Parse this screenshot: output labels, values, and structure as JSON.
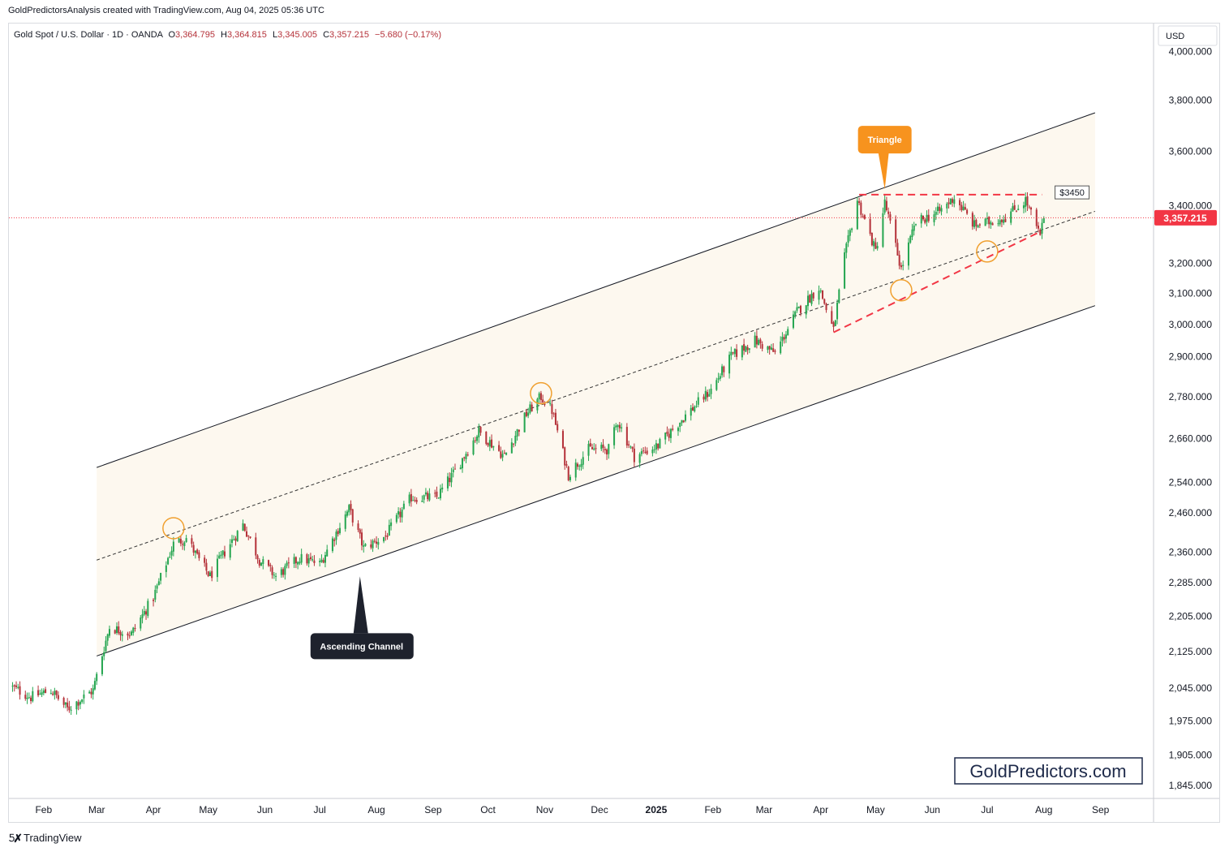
{
  "header": {
    "attribution": "GoldPredictorsAnalysis created with TradingView.com, Aug 04, 2025 05:36 UTC"
  },
  "footer": {
    "brand": "TradingView",
    "logo": "tradingview-logo"
  },
  "watermark": "GoldPredictors.com",
  "colors": {
    "up": "#26a651",
    "down": "#b5323a",
    "channel_fill": "#fdf8ef",
    "triangle_line": "#f23645",
    "price_label": "#f23645",
    "callout_orange": "#f7931e",
    "callout_dark": "#1e222d",
    "circle": "#f0a030"
  },
  "chart_data": {
    "type": "candlestick",
    "symbol": "Gold Spot / U.S. Dollar · 1D · OANDA",
    "ohlc_legend": {
      "o_label": "O",
      "o": "3,364.795",
      "h_label": "H",
      "h": "3,364.815",
      "l_label": "L",
      "l": "3,345.005",
      "c_label": "C",
      "c": "3,357.215",
      "change": "−5.680 (−0.17%)"
    },
    "currency": "USD",
    "y_scale": "log",
    "ylim": [
      1820,
      4120
    ],
    "y_ticks": [
      {
        "v": 4000,
        "label": "4,000.000"
      },
      {
        "v": 3800,
        "label": "3,800.000"
      },
      {
        "v": 3600,
        "label": "3,600.000"
      },
      {
        "v": 3400,
        "label": "3,400.000"
      },
      {
        "v": 3200,
        "label": "3,200.000"
      },
      {
        "v": 3100,
        "label": "3,100.000"
      },
      {
        "v": 3000,
        "label": "3,000.000"
      },
      {
        "v": 2900,
        "label": "2,900.000"
      },
      {
        "v": 2780,
        "label": "2,780.000"
      },
      {
        "v": 2660,
        "label": "2,660.000"
      },
      {
        "v": 2540,
        "label": "2,540.000"
      },
      {
        "v": 2460,
        "label": "2,460.000"
      },
      {
        "v": 2360,
        "label": "2,360.000"
      },
      {
        "v": 2285,
        "label": "2,285.000"
      },
      {
        "v": 2205,
        "label": "2,205.000"
      },
      {
        "v": 2125,
        "label": "2,125.000"
      },
      {
        "v": 2045,
        "label": "2,045.000"
      },
      {
        "v": 1975,
        "label": "1,975.000"
      },
      {
        "v": 1905,
        "label": "1,905.000"
      },
      {
        "v": 1845,
        "label": "1,845.000"
      }
    ],
    "x_ticks": [
      {
        "date": "2024-02-01",
        "label": "Feb"
      },
      {
        "date": "2024-03-01",
        "label": "Mar"
      },
      {
        "date": "2024-04-01",
        "label": "Apr"
      },
      {
        "date": "2024-05-01",
        "label": "May"
      },
      {
        "date": "2024-06-01",
        "label": "Jun"
      },
      {
        "date": "2024-07-01",
        "label": "Jul"
      },
      {
        "date": "2024-08-01",
        "label": "Aug"
      },
      {
        "date": "2024-09-01",
        "label": "Sep"
      },
      {
        "date": "2024-10-01",
        "label": "Oct"
      },
      {
        "date": "2024-11-01",
        "label": "Nov"
      },
      {
        "date": "2024-12-01",
        "label": "Dec"
      },
      {
        "date": "2025-01-01",
        "label": "2025",
        "bold": true
      },
      {
        "date": "2025-02-01",
        "label": "Feb"
      },
      {
        "date": "2025-03-01",
        "label": "Mar"
      },
      {
        "date": "2025-04-01",
        "label": "Apr"
      },
      {
        "date": "2025-05-01",
        "label": "May"
      },
      {
        "date": "2025-06-01",
        "label": "Jun"
      },
      {
        "date": "2025-07-01",
        "label": "Jul"
      },
      {
        "date": "2025-08-01",
        "label": "Aug"
      },
      {
        "date": "2025-09-01",
        "label": "Sep"
      }
    ],
    "x_range": [
      "2024-01-13",
      "2025-09-30"
    ],
    "close_path": [
      [
        "2024-01-13",
        2050
      ],
      [
        "2024-01-25",
        2025
      ],
      [
        "2024-02-05",
        2040
      ],
      [
        "2024-02-14",
        2000
      ],
      [
        "2024-02-28",
        2040
      ],
      [
        "2024-03-08",
        2180
      ],
      [
        "2024-03-20",
        2165
      ],
      [
        "2024-04-01",
        2250
      ],
      [
        "2024-04-12",
        2380
      ],
      [
        "2024-04-19",
        2395
      ],
      [
        "2024-04-26",
        2340
      ],
      [
        "2024-05-02",
        2300
      ],
      [
        "2024-05-10",
        2360
      ],
      [
        "2024-05-20",
        2430
      ],
      [
        "2024-05-29",
        2340
      ],
      [
        "2024-06-07",
        2300
      ],
      [
        "2024-06-20",
        2345
      ],
      [
        "2024-07-01",
        2330
      ],
      [
        "2024-07-17",
        2470
      ],
      [
        "2024-07-25",
        2370
      ],
      [
        "2024-08-06",
        2400
      ],
      [
        "2024-08-20",
        2500
      ],
      [
        "2024-09-03",
        2500
      ],
      [
        "2024-09-13",
        2570
      ],
      [
        "2024-09-26",
        2680
      ],
      [
        "2024-10-10",
        2610
      ],
      [
        "2024-10-22",
        2730
      ],
      [
        "2024-10-30",
        2780
      ],
      [
        "2024-11-05",
        2740
      ],
      [
        "2024-11-14",
        2560
      ],
      [
        "2024-11-25",
        2630
      ],
      [
        "2024-12-06",
        2630
      ],
      [
        "2024-12-11",
        2710
      ],
      [
        "2024-12-20",
        2610
      ],
      [
        "2025-01-02",
        2640
      ],
      [
        "2025-01-16",
        2720
      ],
      [
        "2025-01-31",
        2800
      ],
      [
        "2025-02-11",
        2900
      ],
      [
        "2025-02-24",
        2950
      ],
      [
        "2025-03-07",
        2910
      ],
      [
        "2025-03-19",
        3040
      ],
      [
        "2025-03-31",
        3120
      ],
      [
        "2025-04-08",
        2980
      ],
      [
        "2025-04-14",
        3220
      ],
      [
        "2025-04-21",
        3420
      ],
      [
        "2025-05-01",
        3240
      ],
      [
        "2025-05-06",
        3410
      ],
      [
        "2025-05-15",
        3180
      ],
      [
        "2025-05-23",
        3340
      ],
      [
        "2025-06-05",
        3380
      ],
      [
        "2025-06-13",
        3430
      ],
      [
        "2025-06-24",
        3330
      ],
      [
        "2025-07-01",
        3340
      ],
      [
        "2025-07-11",
        3360
      ],
      [
        "2025-07-22",
        3420
      ],
      [
        "2025-07-30",
        3290
      ],
      [
        "2025-08-01",
        3362
      ]
    ],
    "last_price": 3357.215,
    "last_price_label": "3,357.215",
    "channel": {
      "upper": [
        [
          "2024-03-01",
          2580
        ],
        [
          "2025-08-29",
          3750
        ]
      ],
      "lower": [
        [
          "2024-03-01",
          2115
        ],
        [
          "2025-08-29",
          3060
        ]
      ],
      "middle": [
        [
          "2024-03-01",
          2340
        ],
        [
          "2025-08-29",
          3380
        ]
      ]
    },
    "triangle": {
      "top": [
        [
          "2025-04-22",
          3440
        ],
        [
          "2025-07-31",
          3440
        ]
      ],
      "bottom": [
        [
          "2025-04-08",
          2975
        ],
        [
          "2025-07-29",
          3305
        ]
      ]
    },
    "circles": [
      {
        "date": "2024-04-12",
        "price": 2420
      },
      {
        "date": "2024-10-30",
        "price": 2790
      },
      {
        "date": "2025-05-15",
        "price": 3110
      },
      {
        "date": "2025-07-01",
        "price": 3240
      }
    ],
    "annotations": {
      "triangle": {
        "text": "Triangle",
        "date": "2025-05-06",
        "price": 3460
      },
      "ascending_channel": {
        "text": "Ascending Channel",
        "date": "2024-07-23",
        "price": 2300
      },
      "level": {
        "text": "$3450",
        "date": "2025-08-08",
        "price": 3448
      }
    }
  }
}
